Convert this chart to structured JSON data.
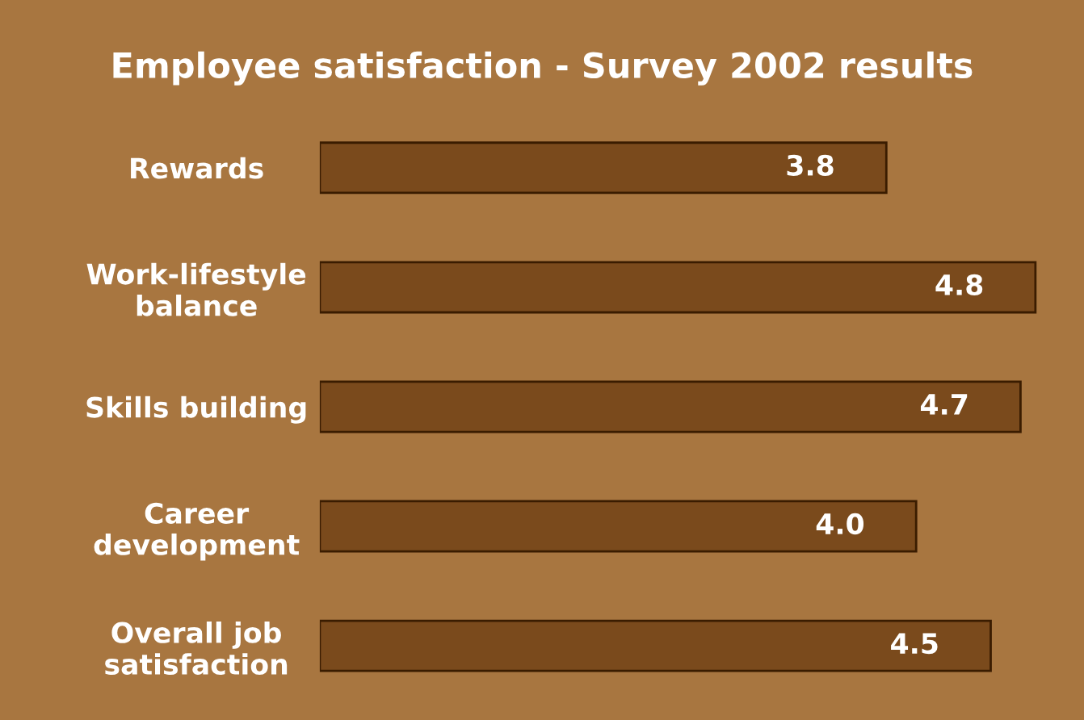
{
  "chart_data": {
    "type": "bar",
    "orientation": "horizontal",
    "title": "Employee satisfaction - Survey 2002 results",
    "categories": [
      "Rewards",
      "Work-lifestyle\nbalance",
      "Skills building",
      "Career\ndevelopment",
      "Overall job\nsatisfaction"
    ],
    "values": [
      3.8,
      4.8,
      4.7,
      4.0,
      4.5
    ],
    "color": "#7a4a1c",
    "value_labels": [
      "3.8",
      "4.8",
      "4.7",
      "4.0",
      "4.5"
    ],
    "grid": false,
    "legend": false
  }
}
